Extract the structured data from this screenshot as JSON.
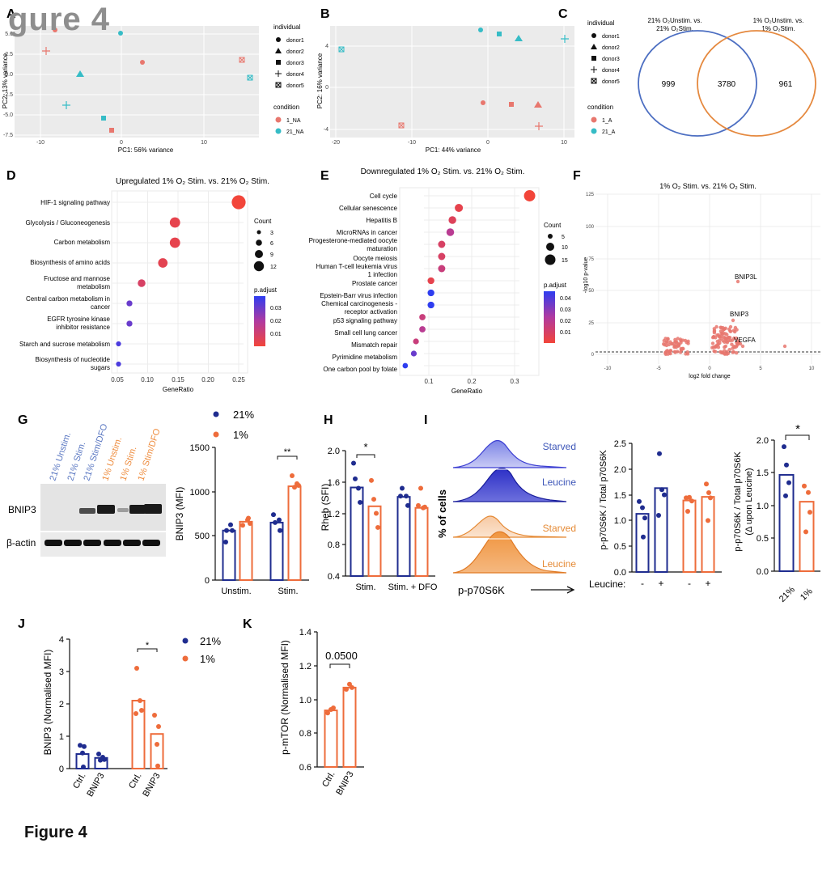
{
  "figure": {
    "watermark": "gure 4",
    "caption": "Figure 4"
  },
  "colors": {
    "blue": "#1f2c8f",
    "orange": "#ee6c3b",
    "pink": "#e8776e",
    "teal": "#36bcc6",
    "grey_panel": "#ebebeb",
    "venn_blue": "#4d6fc2",
    "venn_orange": "#e5893f"
  },
  "panels": {
    "A": {
      "letter": "A",
      "xlabel": "PC1: 56% variance",
      "ylabel": "PC2: 13% variance",
      "xticks": [
        "-10",
        "0",
        "10"
      ],
      "yticks": [
        "5.0",
        "2.5",
        "0.0",
        "-2.5",
        "-5.0",
        "-7.5"
      ],
      "legend_individual_title": "individual",
      "individuals": [
        "donor1",
        "donor2",
        "donor3",
        "donor4",
        "donor5"
      ],
      "legend_condition_title": "condition",
      "conditions": [
        "1_NA",
        "21_NA"
      ]
    },
    "B": {
      "letter": "B",
      "xlabel": "PC1: 44% variance",
      "ylabel": "PC2: 16% variance",
      "xticks": [
        "-20",
        "-10",
        "0",
        "10"
      ],
      "yticks": [
        "4",
        "0",
        "-4"
      ],
      "legend_individual_title": "individual",
      "individuals": [
        "donor1",
        "donor2",
        "donor3",
        "donor4",
        "donor5"
      ],
      "legend_condition_title": "condition",
      "conditions": [
        "1_A",
        "21_A"
      ]
    },
    "C": {
      "letter": "C",
      "left_title_1": "21% O₂Unstim. vs.",
      "left_title_2": "21% O₂Stim.",
      "right_title_1": "1% O₂Unstim. vs.",
      "right_title_2": "1% O₂Stim.",
      "left_only": "999",
      "overlap": "3780",
      "right_only": "961"
    },
    "D": {
      "letter": "D",
      "title": "Upregulated 1% O₂ Stim. vs. 21% O₂ Stim.",
      "xlabel": "GeneRatio",
      "xticks": [
        "0.05",
        "0.10",
        "0.15",
        "0.20",
        "0.25"
      ],
      "count_title": "Count",
      "count_values": [
        "3",
        "6",
        "9",
        "12"
      ],
      "padj_title": "p.adjust",
      "padj_ticks": [
        "0.03",
        "0.02",
        "0.01"
      ],
      "terms": [
        "HIF-1 signaling pathway",
        "Glycolysis / Gluconeogenesis",
        "Carbon metabolism",
        "Biosynthesis of amino acids",
        "Fructose and mannose",
        "metabolism",
        "Central carbon metabolism in",
        "cancer",
        "EGFR tyrosine kinase",
        "inhibitor resistance",
        "Starch and sucrose metabolism",
        "Biosynthesis of nucleotide",
        "sugars"
      ]
    },
    "E": {
      "letter": "E",
      "title": "Downregulated 1% O₂ Stim. vs. 21% O₂ Stim.",
      "xlabel": "GeneRatio",
      "xticks": [
        "0.1",
        "0.2",
        "0.3"
      ],
      "count_title": "Count",
      "count_values": [
        "5",
        "10",
        "15"
      ],
      "padj_title": "p.adjust",
      "padj_ticks": [
        "0.04",
        "0.03",
        "0.02",
        "0.01"
      ],
      "terms": [
        "Cell cycle",
        "Cellular senescence",
        "Hepatitis B",
        "MicroRNAs in cancer",
        "Progesterone-mediated oocyte",
        "maturation",
        "Oocyte meiosis",
        "Human T-cell leukemia virus",
        "1 infection",
        "Prostate cancer",
        "Epstein-Barr virus infection",
        "Chemical carcinogenesis -",
        "receptor activation",
        "p53 signaling pathway",
        "Small cell lung cancer",
        "Mismatch repair",
        "Pyrimidine metabolism",
        "One carbon pool by folate"
      ]
    },
    "F": {
      "letter": "F",
      "title": "1% O₂ Stim. vs. 21% O₂ Stim.",
      "xlabel": "log2 fold change",
      "ylabel": "-log10 p-value",
      "xticks": [
        "-10",
        "-5",
        "0",
        "5",
        "10"
      ],
      "yticks": [
        "125",
        "100",
        "75",
        "50",
        "25",
        "0"
      ],
      "gene_labels": [
        "BNIP3L",
        "BNIP3",
        "VEGFA"
      ]
    },
    "G": {
      "letter": "G",
      "lanes": [
        "21% Unstim.",
        "21% Stim.",
        "21% Stim/DFO",
        "1% Unstim.",
        "1% Stim.",
        "1% Stim/DFO"
      ],
      "band_bnip3": "BNIP3",
      "band_actin": "β-actin",
      "legend_21": "21%",
      "legend_1": "1%",
      "ylabel": "BNIP3 (MFI)",
      "yticks": [
        "1500",
        "1000",
        "500",
        "0"
      ],
      "xcats": [
        "Unstim.",
        "Stim."
      ],
      "sig": "**"
    },
    "H": {
      "letter": "H",
      "ylabel": "Rheb (SFI)",
      "yticks": [
        "2.0",
        "1.6",
        "1.2",
        "0.8",
        "0.4"
      ],
      "xcats": [
        "Stim.",
        "Stim. + DFO"
      ],
      "sig": "*"
    },
    "I": {
      "letter": "I",
      "hist_labels": [
        "Starved",
        "Leucine",
        "Starved",
        "Leucine"
      ],
      "hist_ylabel": "% of cells",
      "hist_xlabel": "p-p70S6K",
      "bar1_ylabel": "p-p70S6K / Total p70S6K",
      "bar1_yticks": [
        "2.5",
        "2.0",
        "1.5",
        "1.0",
        "0.5",
        "0.0"
      ],
      "leucine_label": "Leucine:",
      "leucine_signs": [
        "-",
        "+",
        "-",
        "+"
      ],
      "bar2_ylabel_1": "p-p70S6K / Total p70S6K",
      "bar2_ylabel_2": "(Δ upon Leucine)",
      "bar2_yticks": [
        "2.0",
        "1.5",
        "1.0",
        "0.5",
        "0.0"
      ],
      "bar2_xcats": [
        "21%",
        "1%"
      ],
      "sig": "*"
    },
    "J": {
      "letter": "J",
      "ylabel": "BNIP3 (Normalised MFI)",
      "yticks": [
        "4",
        "3",
        "2",
        "1",
        "0"
      ],
      "xcats": [
        "Ctrl.",
        "BNIP3",
        "Ctrl.",
        "BNIP3"
      ],
      "legend_21": "21%",
      "legend_1": "1%",
      "sig": "*"
    },
    "K": {
      "letter": "K",
      "ylabel": "p-mTOR (Normalised MFI)",
      "yticks": [
        "1.4",
        "1.2",
        "1.0",
        "0.8",
        "0.6"
      ],
      "xcats": [
        "Ctrl.",
        "BNIP3"
      ],
      "pvalue": "0.0500"
    }
  },
  "chart_data": [
    {
      "panel": "D",
      "type": "scatter",
      "title": "Upregulated 1% O₂ Stim. vs. 21% O₂ Stim.",
      "xlabel": "GeneRatio",
      "y": [
        "HIF-1 signaling pathway",
        "Glycolysis / Gluconeogenesis",
        "Carbon metabolism",
        "Biosynthesis of amino acids",
        "Fructose and mannose metabolism",
        "Central carbon metabolism in cancer",
        "EGFR tyrosine kinase inhibitor resistance",
        "Starch and sucrose metabolism",
        "Biosynthesis of nucleotide sugars"
      ],
      "x": [
        0.25,
        0.145,
        0.145,
        0.125,
        0.09,
        0.07,
        0.07,
        0.052,
        0.052
      ],
      "count": [
        12,
        8,
        8,
        7,
        5,
        3,
        3,
        2,
        2
      ],
      "p_adjust": [
        0.001,
        0.005,
        0.005,
        0.006,
        0.01,
        0.035,
        0.035,
        0.04,
        0.04
      ]
    },
    {
      "panel": "E",
      "type": "scatter",
      "title": "Downregulated 1% O₂ Stim. vs. 21% O₂ Stim.",
      "xlabel": "GeneRatio",
      "y": [
        "Cell cycle",
        "Cellular senescence",
        "Hepatitis B",
        "MicroRNAs in cancer",
        "Progesterone-mediated oocyte maturation",
        "Oocyte meiosis",
        "Human T-cell leukemia virus 1 infection",
        "Prostate cancer",
        "Epstein-Barr virus infection",
        "Chemical carcinogenesis - receptor activation",
        "p53 signaling pathway",
        "Small cell lung cancer",
        "Mismatch repair",
        "Pyrimidine metabolism",
        "One carbon pool by folate"
      ],
      "x": [
        0.335,
        0.17,
        0.155,
        0.15,
        0.13,
        0.13,
        0.13,
        0.105,
        0.105,
        0.105,
        0.085,
        0.085,
        0.07,
        0.065,
        0.045
      ],
      "count": [
        16,
        9,
        8,
        8,
        7,
        7,
        7,
        6,
        6,
        6,
        5,
        5,
        4,
        4,
        3
      ],
      "p_adjust": [
        0.001,
        0.005,
        0.008,
        0.02,
        0.01,
        0.01,
        0.015,
        0.005,
        0.045,
        0.045,
        0.015,
        0.02,
        0.015,
        0.035,
        0.045
      ]
    },
    {
      "panel": "G",
      "type": "bar",
      "ylabel": "BNIP3 (MFI)",
      "categories": [
        "Unstim.",
        "Stim."
      ],
      "ylim": [
        0,
        1500
      ],
      "series": [
        {
          "name": "21%",
          "values": [
            560,
            650
          ]
        },
        {
          "name": "1%",
          "values": [
            660,
            1060
          ]
        }
      ]
    },
    {
      "panel": "H",
      "type": "bar",
      "ylabel": "Rheb (SFI)",
      "categories": [
        "Stim.",
        "Stim. + DFO"
      ],
      "ylim": [
        0.4,
        2.0
      ],
      "series": [
        {
          "name": "21%",
          "values": [
            1.53,
            1.41
          ]
        },
        {
          "name": "1%",
          "values": [
            1.29,
            1.27
          ]
        }
      ]
    },
    {
      "panel": "I-left",
      "type": "bar",
      "ylabel": "p-p70S6K / Total p70S6K",
      "ylim": [
        0,
        2.5
      ],
      "categories": [
        "21% -",
        "21% +",
        "1% -",
        "1% +"
      ],
      "values": [
        1.13,
        1.63,
        1.39,
        1.46
      ]
    },
    {
      "panel": "I-right",
      "type": "bar",
      "ylabel": "p-p70S6K / Total p70S6K (Δ upon Leucine)",
      "ylim": [
        0,
        2.0
      ],
      "categories": [
        "21%",
        "1%"
      ],
      "values": [
        1.47,
        1.06
      ]
    },
    {
      "panel": "J",
      "type": "bar",
      "ylabel": "BNIP3 (Normalised MFI)",
      "ylim": [
        0,
        4
      ],
      "categories": [
        "21% Ctrl.",
        "21% BNIP3",
        "1% Ctrl.",
        "1% BNIP3"
      ],
      "values": [
        0.45,
        0.33,
        2.1,
        1.07
      ]
    },
    {
      "panel": "K",
      "type": "bar",
      "ylabel": "p-mTOR (Normalised MFI)",
      "ylim": [
        0.6,
        1.4
      ],
      "categories": [
        "Ctrl.",
        "BNIP3"
      ],
      "values": [
        0.935,
        1.07
      ]
    }
  ]
}
